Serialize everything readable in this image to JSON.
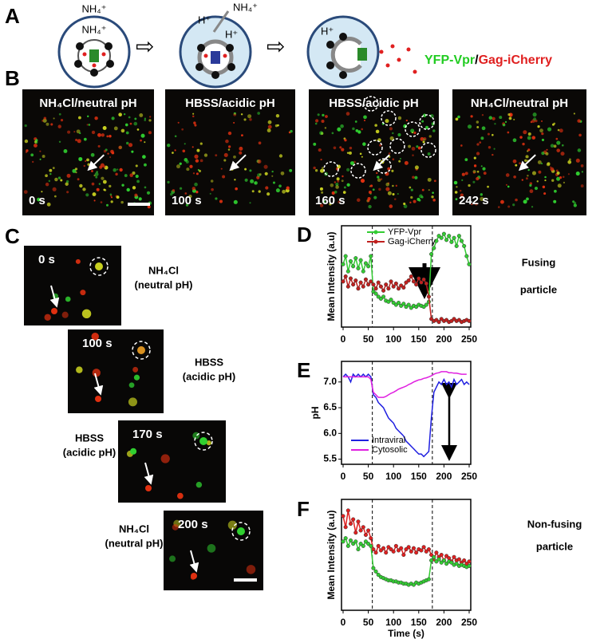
{
  "figure": {
    "panel_labels": [
      "A",
      "B",
      "C",
      "D",
      "E",
      "F"
    ],
    "schematic": {
      "ion_top": "NH₄⁺",
      "ion_in": "NH₄⁺",
      "ion_out": "NH₄⁺",
      "proton_left": "H⁺",
      "proton_in": "H⁺",
      "proton_cell3": "H⁺",
      "legend_yfp": "YFP-Vpr",
      "legend_sep": "/",
      "legend_gag": "Gag-iCherry"
    },
    "b_panels": [
      {
        "label": "NH₄Cl/neutral pH",
        "time": "0 s"
      },
      {
        "label": "HBSS/acidic pH",
        "time": "100 s"
      },
      {
        "label": "HBSS/acidic pH",
        "time": "160 s"
      },
      {
        "label": "NH₄Cl/neutral pH",
        "time": "242 s"
      }
    ],
    "c_panels": [
      {
        "time": "0 s",
        "condition": "NH₄Cl",
        "ph": "(neutral pH)"
      },
      {
        "time": "100 s",
        "condition": "HBSS",
        "ph": "(acidic pH)"
      },
      {
        "time": "170 s",
        "condition": "HBSS",
        "ph": "(acidic pH)"
      },
      {
        "time": "200 s",
        "condition": "NH₄Cl",
        "ph": "(neutral pH)"
      }
    ],
    "d_note": [
      "Fusing",
      "particle"
    ],
    "f_note": [
      "Non-fusing",
      "particle"
    ]
  },
  "chart_data": [
    {
      "type": "line",
      "ylabel": "Mean Intensity (a.u)",
      "ylim": [
        0,
        100
      ],
      "xlim": [
        0,
        250
      ],
      "xticks": [
        0,
        50,
        100,
        150,
        200,
        250
      ],
      "vlines": [
        58,
        177
      ],
      "legend": "top",
      "x": [
        0,
        5,
        10,
        15,
        20,
        25,
        30,
        35,
        40,
        45,
        50,
        55,
        60,
        65,
        70,
        75,
        80,
        85,
        90,
        95,
        100,
        105,
        110,
        115,
        120,
        125,
        130,
        135,
        140,
        145,
        150,
        155,
        160,
        165,
        170,
        175,
        180,
        185,
        190,
        195,
        200,
        205,
        210,
        215,
        220,
        225,
        230,
        235,
        240,
        245,
        250
      ],
      "series": [
        {
          "name": "YFP-Vpr",
          "color": "#33cc33",
          "marker": true,
          "values": [
            62,
            70,
            55,
            65,
            60,
            68,
            58,
            66,
            55,
            63,
            60,
            70,
            35,
            33,
            30,
            28,
            30,
            26,
            25,
            27,
            24,
            22,
            24,
            21,
            23,
            20,
            22,
            19,
            21,
            20,
            22,
            21,
            20,
            22,
            25,
            72,
            78,
            85,
            90,
            88,
            92,
            86,
            90,
            84,
            88,
            80,
            90,
            85,
            80,
            70,
            62
          ]
        },
        {
          "name": "Gag-iCherry",
          "color": "#c0201e",
          "marker": true,
          "values": [
            45,
            50,
            40,
            48,
            42,
            46,
            38,
            44,
            40,
            47,
            42,
            45,
            42,
            38,
            44,
            40,
            36,
            42,
            38,
            45,
            40,
            43,
            38,
            41,
            39,
            44,
            46,
            50,
            45,
            42,
            48,
            44,
            47,
            43,
            30,
            8,
            6,
            7,
            5,
            8,
            6,
            7,
            5,
            6,
            8,
            6,
            7,
            5,
            6,
            7,
            6
          ]
        }
      ]
    },
    {
      "type": "line",
      "ylabel": "pH",
      "ylim": [
        5.4,
        7.4
      ],
      "yticks": [
        5.5,
        {
          "value": 6,
          "label": "6.0"
        },
        6.5,
        {
          "value": 7,
          "label": "7.0"
        }
      ],
      "xlim": [
        0,
        250
      ],
      "xticks": [
        0,
        50,
        100,
        150,
        200,
        250
      ],
      "vlines": [
        58,
        177
      ],
      "legend": "bottom-left",
      "x": [
        0,
        5,
        10,
        15,
        20,
        25,
        30,
        35,
        40,
        45,
        50,
        55,
        60,
        65,
        70,
        75,
        80,
        85,
        90,
        95,
        100,
        105,
        110,
        115,
        120,
        125,
        130,
        135,
        140,
        145,
        150,
        155,
        160,
        165,
        170,
        175,
        180,
        185,
        190,
        195,
        200,
        205,
        210,
        215,
        220,
        225,
        230,
        235,
        240,
        245,
        250
      ],
      "series": [
        {
          "name": "Intraviral",
          "color": "#2020e0",
          "marker": false,
          "values": [
            7.1,
            7.15,
            7.1,
            7.0,
            7.15,
            7.1,
            7.15,
            7.1,
            7.15,
            7.1,
            7.15,
            7.1,
            6.75,
            6.7,
            6.6,
            6.55,
            6.5,
            6.4,
            6.3,
            6.25,
            6.2,
            6.1,
            6.05,
            6.0,
            5.95,
            5.85,
            5.8,
            5.75,
            5.7,
            5.65,
            5.6,
            5.6,
            5.55,
            5.6,
            5.65,
            6.3,
            6.8,
            6.9,
            7.0,
            6.95,
            7.05,
            6.95,
            7.0,
            6.9,
            7.05,
            6.95,
            7.0,
            7.05,
            6.95,
            7.0,
            6.95
          ]
        },
        {
          "name": "Cytosolic",
          "color": "#e020e0",
          "marker": false,
          "values": [
            7.1,
            7.1,
            7.1,
            7.1,
            7.1,
            7.1,
            7.1,
            7.1,
            7.1,
            7.1,
            7.1,
            7.05,
            6.8,
            6.75,
            6.7,
            6.7,
            6.7,
            6.72,
            6.75,
            6.78,
            6.8,
            6.83,
            6.86,
            6.88,
            6.9,
            6.92,
            6.95,
            6.97,
            7.0,
            7.02,
            7.04,
            7.05,
            7.07,
            7.08,
            7.1,
            7.12,
            7.15,
            7.17,
            7.18,
            7.2,
            7.2,
            7.2,
            7.18,
            7.18,
            7.17,
            7.17,
            7.16,
            7.15,
            7.15,
            7.15,
            null
          ]
        }
      ]
    },
    {
      "type": "line",
      "ylabel": "Mean Intensity (a.u)",
      "xlabel": "Time (s)",
      "ylim": [
        0,
        100
      ],
      "xlim": [
        0,
        250
      ],
      "xticks": [
        0,
        50,
        100,
        150,
        200,
        250
      ],
      "vlines": [
        58,
        177
      ],
      "x": [
        0,
        5,
        10,
        15,
        20,
        25,
        30,
        35,
        40,
        45,
        50,
        55,
        60,
        65,
        70,
        75,
        80,
        85,
        90,
        95,
        100,
        105,
        110,
        115,
        120,
        125,
        130,
        135,
        140,
        145,
        150,
        155,
        160,
        165,
        170,
        175,
        180,
        185,
        190,
        195,
        200,
        205,
        210,
        215,
        220,
        225,
        230,
        235,
        240,
        245,
        250
      ],
      "series": [
        {
          "color": "#e02020",
          "marker": true,
          "values": [
            85,
            75,
            90,
            78,
            82,
            70,
            80,
            72,
            75,
            68,
            72,
            65,
            55,
            52,
            58,
            54,
            56,
            52,
            57,
            55,
            53,
            58,
            54,
            56,
            50,
            55,
            57,
            53,
            56,
            52,
            55,
            54,
            57,
            53,
            55,
            50,
            46,
            52,
            48,
            50,
            45,
            49,
            47,
            44,
            48,
            45,
            46,
            43,
            45,
            42,
            44
          ]
        },
        {
          "color": "#33cc33",
          "marker": true,
          "values": [
            62,
            65,
            58,
            63,
            60,
            62,
            55,
            60,
            58,
            62,
            60,
            58,
            38,
            35,
            32,
            30,
            29,
            28,
            27,
            27,
            26,
            26,
            25,
            25,
            24,
            24,
            23,
            24,
            23,
            25,
            24,
            25,
            26,
            27,
            28,
            45,
            48,
            44,
            46,
            43,
            45,
            42,
            44,
            43,
            41,
            42,
            40,
            41,
            40,
            39,
            40
          ]
        }
      ]
    }
  ]
}
